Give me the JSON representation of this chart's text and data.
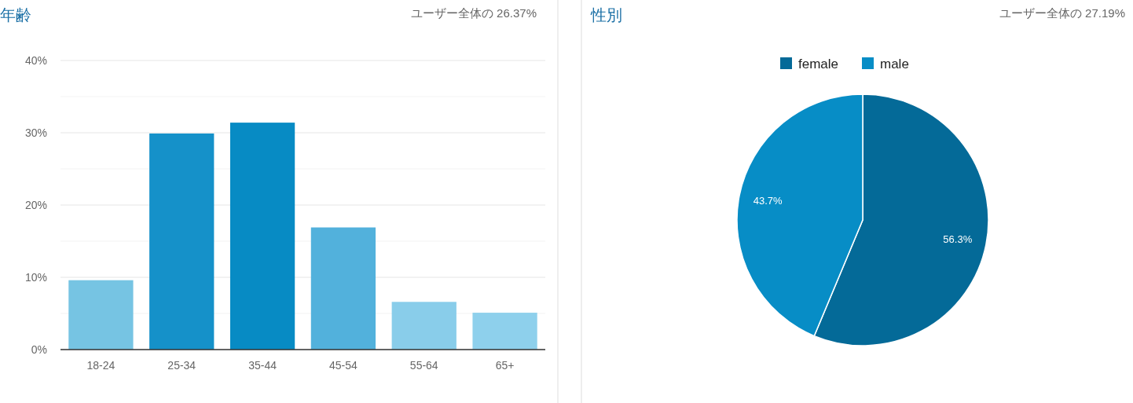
{
  "chart_data": [
    {
      "type": "bar",
      "title": "年齢",
      "subtitle": "ユーザー全体の 26.37%",
      "categories": [
        "18-24",
        "25-34",
        "35-44",
        "45-54",
        "55-64",
        "65+"
      ],
      "values": [
        9.6,
        29.9,
        31.4,
        16.9,
        6.6,
        5.1
      ],
      "colors": [
        "#76c4e3",
        "#1591c9",
        "#078bc4",
        "#52b1dc",
        "#89cdea",
        "#8ed0ec"
      ],
      "ylim": [
        0,
        40
      ],
      "yticks": [
        {
          "value": 0,
          "label": "0%"
        },
        {
          "value": 5,
          "label": null
        },
        {
          "value": 10,
          "label": "10%"
        },
        {
          "value": 15,
          "label": null
        },
        {
          "value": 20,
          "label": "20%"
        },
        {
          "value": 25,
          "label": null
        },
        {
          "value": 30,
          "label": "30%"
        },
        {
          "value": 35,
          "label": null
        },
        {
          "value": 40,
          "label": "40%"
        }
      ],
      "grid": "y"
    },
    {
      "type": "pie",
      "title": "性別",
      "subtitle": "ユーザー全体の 27.19%",
      "categories": [
        "female",
        "male"
      ],
      "values": [
        56.3,
        43.7
      ],
      "colors": [
        "#046a98",
        "#078dc6"
      ],
      "value_labels": [
        "56.3%",
        "43.7%"
      ],
      "legend": "top"
    }
  ]
}
